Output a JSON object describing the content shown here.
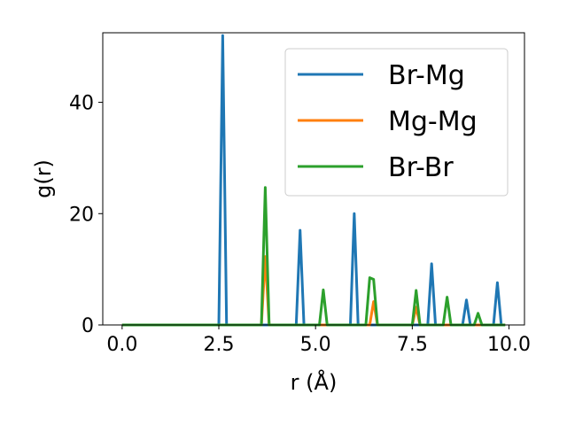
{
  "chart_data": {
    "type": "line",
    "xlabel": "r (Å)",
    "ylabel": "g(r)",
    "xlim": [
      -0.5,
      10.4
    ],
    "ylim": [
      0,
      52.5
    ],
    "xticks": [
      0.0,
      2.5,
      5.0,
      7.5,
      10.0
    ],
    "xtick_labels": [
      "0.0",
      "2.5",
      "5.0",
      "7.5",
      "10.0"
    ],
    "yticks": [
      0,
      20,
      40
    ],
    "ytick_labels": [
      "0",
      "20",
      "40"
    ],
    "grid": false,
    "legend_position": "top-right",
    "series": [
      {
        "name": "Br-Mg",
        "color": "#1f77b4",
        "x": [
          0.0,
          2.5,
          2.6,
          2.7,
          4.5,
          4.6,
          4.7,
          5.9,
          6.0,
          6.1,
          7.9,
          8.0,
          8.1,
          8.8,
          8.9,
          9.0,
          9.6,
          9.7,
          9.8,
          9.9
        ],
        "y": [
          0,
          0,
          52,
          0,
          0,
          17,
          0,
          0,
          20,
          0,
          0,
          11,
          0,
          0,
          4.5,
          0,
          0,
          7.6,
          0,
          0
        ]
      },
      {
        "name": "Mg-Mg",
        "color": "#ff7f0e",
        "x": [
          0.0,
          3.6,
          3.7,
          3.8,
          6.4,
          6.5,
          6.6,
          7.5,
          7.6,
          7.7,
          9.9
        ],
        "y": [
          0,
          0,
          12.3,
          0,
          0,
          4.2,
          0,
          0,
          3.2,
          0,
          0
        ]
      },
      {
        "name": "Br-Br",
        "color": "#2ca02c",
        "x": [
          0.0,
          3.6,
          3.7,
          3.8,
          5.1,
          5.2,
          5.3,
          6.3,
          6.4,
          6.5,
          6.6,
          7.5,
          7.6,
          7.7,
          8.3,
          8.4,
          8.5,
          9.1,
          9.2,
          9.3,
          9.9
        ],
        "y": [
          0,
          0,
          24.7,
          0,
          0,
          6.3,
          0,
          0,
          8.5,
          8.2,
          0,
          0,
          6.2,
          0,
          0,
          5.0,
          0,
          0,
          2.1,
          0,
          0
        ]
      }
    ]
  }
}
